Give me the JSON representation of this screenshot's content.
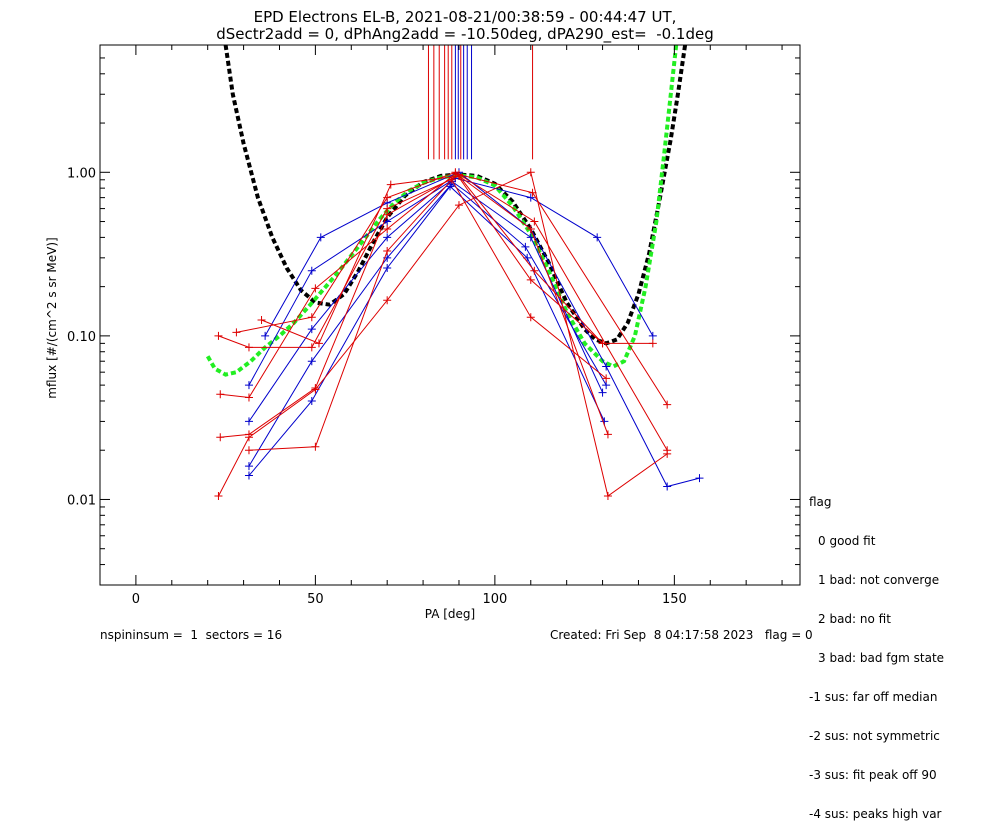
{
  "chart_data": {
    "type": "line",
    "title_line1": "EPD Electrons EL-B, 2021-08-21/00:38:59 - 00:44:47 UT,",
    "title_line2": "dSectr2add = 0, dPhAng2add = -10.50deg, dPA290_est=  -0.1deg",
    "xlabel": "PA [deg]",
    "ylabel": "mflux [#/(cm^2 s sr MeV)]",
    "xlim": [
      -10,
      185
    ],
    "ylim": [
      0.003,
      6.0
    ],
    "yscale": "log",
    "xticks": [
      {
        "v": 0,
        "label": "0"
      },
      {
        "v": 50,
        "label": "50"
      },
      {
        "v": 100,
        "label": "100"
      },
      {
        "v": 150,
        "label": "150"
      }
    ],
    "yticks": [
      {
        "v": 0.01,
        "label": "0.01"
      },
      {
        "v": 0.1,
        "label": "0.10"
      },
      {
        "v": 1.0,
        "label": "1.00"
      }
    ],
    "colors": {
      "red": "#dd0000",
      "blue": "#0000cc",
      "fit_black": "#000000",
      "fit_green": "#22ee22"
    },
    "vertical_lines": [
      {
        "x": 81.5,
        "color": "#dd0000"
      },
      {
        "x": 83.0,
        "color": "#dd0000"
      },
      {
        "x": 84.5,
        "color": "#dd0000"
      },
      {
        "x": 86.0,
        "color": "#dd0000"
      },
      {
        "x": 87.0,
        "color": "#dd0000"
      },
      {
        "x": 88.0,
        "color": "#dd0000"
      },
      {
        "x": 89.0,
        "color": "#0000cc"
      },
      {
        "x": 89.8,
        "color": "#0000cc"
      },
      {
        "x": 90.5,
        "color": "#dd0000"
      },
      {
        "x": 91.3,
        "color": "#0000cc"
      },
      {
        "x": 92.3,
        "color": "#0000cc"
      },
      {
        "x": 93.5,
        "color": "#0000cc"
      },
      {
        "x": 110.5,
        "color": "#dd0000"
      }
    ],
    "series": [
      {
        "color": "#0000cc",
        "points": [
          [
            31.5,
            0.014
          ],
          [
            49,
            0.04
          ],
          [
            70,
            0.26
          ],
          [
            87.5,
            0.82
          ],
          [
            109,
            0.3
          ],
          [
            130.5,
            0.03
          ]
        ]
      },
      {
        "color": "#0000cc",
        "points": [
          [
            31.5,
            0.03
          ],
          [
            49,
            0.11
          ],
          [
            70,
            0.4
          ],
          [
            88,
            0.88
          ],
          [
            110,
            0.4
          ],
          [
            130,
            0.045
          ]
        ]
      },
      {
        "color": "#0000cc",
        "points": [
          [
            31.5,
            0.05
          ],
          [
            49,
            0.25
          ],
          [
            70,
            0.5
          ],
          [
            89,
            0.92
          ],
          [
            110,
            0.7
          ],
          [
            128.5,
            0.4
          ],
          [
            144,
            0.1
          ]
        ]
      },
      {
        "color": "#0000cc",
        "points": [
          [
            36,
            0.1
          ],
          [
            51.5,
            0.4
          ],
          [
            70,
            0.65
          ],
          [
            90,
            1.0
          ],
          [
            110,
            0.45
          ],
          [
            131,
            0.065
          ],
          [
            148,
            0.012
          ],
          [
            157,
            0.0135
          ]
        ]
      },
      {
        "color": "#0000cc",
        "points": [
          [
            31.5,
            0.016
          ],
          [
            49,
            0.07
          ],
          [
            70,
            0.3
          ],
          [
            88,
            0.85
          ],
          [
            108.5,
            0.35
          ],
          [
            131,
            0.05
          ]
        ]
      },
      {
        "color": "#dd0000",
        "points": [
          [
            23,
            0.1
          ],
          [
            31.5,
            0.085
          ],
          [
            49,
            0.085
          ],
          [
            70,
            0.6
          ],
          [
            90,
            0.95
          ],
          [
            110,
            0.45
          ],
          [
            131.5,
            0.025
          ]
        ]
      },
      {
        "color": "#dd0000",
        "points": [
          [
            23.5,
            0.044
          ],
          [
            31.5,
            0.042
          ],
          [
            50,
            0.195
          ],
          [
            70,
            0.45
          ],
          [
            89,
            0.98
          ],
          [
            110.5,
            0.75
          ],
          [
            148,
            0.038
          ]
        ]
      },
      {
        "color": "#dd0000",
        "points": [
          [
            23.5,
            0.024
          ],
          [
            31.5,
            0.025
          ],
          [
            50,
            0.048
          ],
          [
            70,
            0.55
          ],
          [
            90,
            0.97
          ],
          [
            111,
            0.5
          ],
          [
            148,
            0.02
          ]
        ]
      },
      {
        "color": "#dd0000",
        "points": [
          [
            23,
            0.0105
          ],
          [
            31.5,
            0.024
          ],
          [
            50,
            0.047
          ],
          [
            70,
            0.165
          ],
          [
            90,
            0.63
          ],
          [
            110,
            1.0
          ],
          [
            131.5,
            0.0105
          ],
          [
            148,
            0.019
          ]
        ]
      },
      {
        "color": "#dd0000",
        "points": [
          [
            28,
            0.105
          ],
          [
            49,
            0.13
          ],
          [
            70,
            0.7
          ],
          [
            89,
            1.0
          ],
          [
            110,
            0.22
          ],
          [
            130,
            0.09
          ],
          [
            144,
            0.09
          ]
        ]
      },
      {
        "color": "#dd0000",
        "points": [
          [
            31.5,
            0.02
          ],
          [
            50,
            0.021
          ],
          [
            70,
            0.33
          ],
          [
            88,
            0.9
          ],
          [
            110,
            0.13
          ],
          [
            131,
            0.055
          ]
        ]
      },
      {
        "color": "#dd0000",
        "points": [
          [
            35,
            0.125
          ],
          [
            51,
            0.09
          ],
          [
            71,
            0.84
          ],
          [
            90,
            0.95
          ],
          [
            111,
            0.25
          ],
          [
            130,
            0.09
          ]
        ]
      }
    ],
    "fit_black": [
      [
        25,
        6.0
      ],
      [
        27,
        3.0
      ],
      [
        30,
        1.5
      ],
      [
        34,
        0.7
      ],
      [
        38,
        0.4
      ],
      [
        42,
        0.26
      ],
      [
        46,
        0.19
      ],
      [
        50,
        0.16
      ],
      [
        54,
        0.155
      ],
      [
        58,
        0.18
      ],
      [
        62,
        0.25
      ],
      [
        66,
        0.37
      ],
      [
        70,
        0.53
      ],
      [
        75,
        0.72
      ],
      [
        80,
        0.87
      ],
      [
        85,
        0.95
      ],
      [
        90,
        0.97
      ],
      [
        95,
        0.95
      ],
      [
        100,
        0.85
      ],
      [
        105,
        0.66
      ],
      [
        110,
        0.45
      ],
      [
        115,
        0.28
      ],
      [
        120,
        0.16
      ],
      [
        125,
        0.11
      ],
      [
        128,
        0.095
      ],
      [
        131,
        0.09
      ],
      [
        134,
        0.095
      ],
      [
        137,
        0.12
      ],
      [
        140,
        0.18
      ],
      [
        143,
        0.32
      ],
      [
        146,
        0.7
      ],
      [
        149,
        1.6
      ],
      [
        151,
        3.0
      ],
      [
        153,
        6.0
      ]
    ],
    "fit_green": [
      [
        20,
        0.075
      ],
      [
        22,
        0.063
      ],
      [
        25,
        0.058
      ],
      [
        28,
        0.06
      ],
      [
        32,
        0.07
      ],
      [
        36,
        0.085
      ],
      [
        40,
        0.1
      ],
      [
        44,
        0.12
      ],
      [
        48,
        0.15
      ],
      [
        52,
        0.19
      ],
      [
        56,
        0.24
      ],
      [
        60,
        0.31
      ],
      [
        64,
        0.4
      ],
      [
        68,
        0.52
      ],
      [
        72,
        0.65
      ],
      [
        76,
        0.77
      ],
      [
        80,
        0.86
      ],
      [
        85,
        0.93
      ],
      [
        90,
        0.96
      ],
      [
        95,
        0.93
      ],
      [
        100,
        0.83
      ],
      [
        105,
        0.62
      ],
      [
        110,
        0.42
      ],
      [
        115,
        0.25
      ],
      [
        120,
        0.14
      ],
      [
        125,
        0.09
      ],
      [
        130,
        0.07
      ],
      [
        133,
        0.065
      ],
      [
        136,
        0.07
      ],
      [
        139,
        0.1
      ],
      [
        142,
        0.2
      ],
      [
        145,
        0.5
      ],
      [
        147,
        1.2
      ],
      [
        149,
        3.0
      ],
      [
        150.5,
        6.0
      ]
    ],
    "legend": [
      "flag",
      "0 good fit",
      "1 bad: not converge",
      "2 bad: no fit",
      "3 bad: bad fgm state",
      "-1 sus: far off median",
      "-2 sus: not symmetric",
      "-3 sus: fit peak off 90",
      "-4 sus: peaks high var"
    ]
  },
  "footer": {
    "left": "nspininsum =  1  sectors = 16",
    "right": "Created: Fri Sep  8 04:17:58 2023   flag = 0"
  }
}
